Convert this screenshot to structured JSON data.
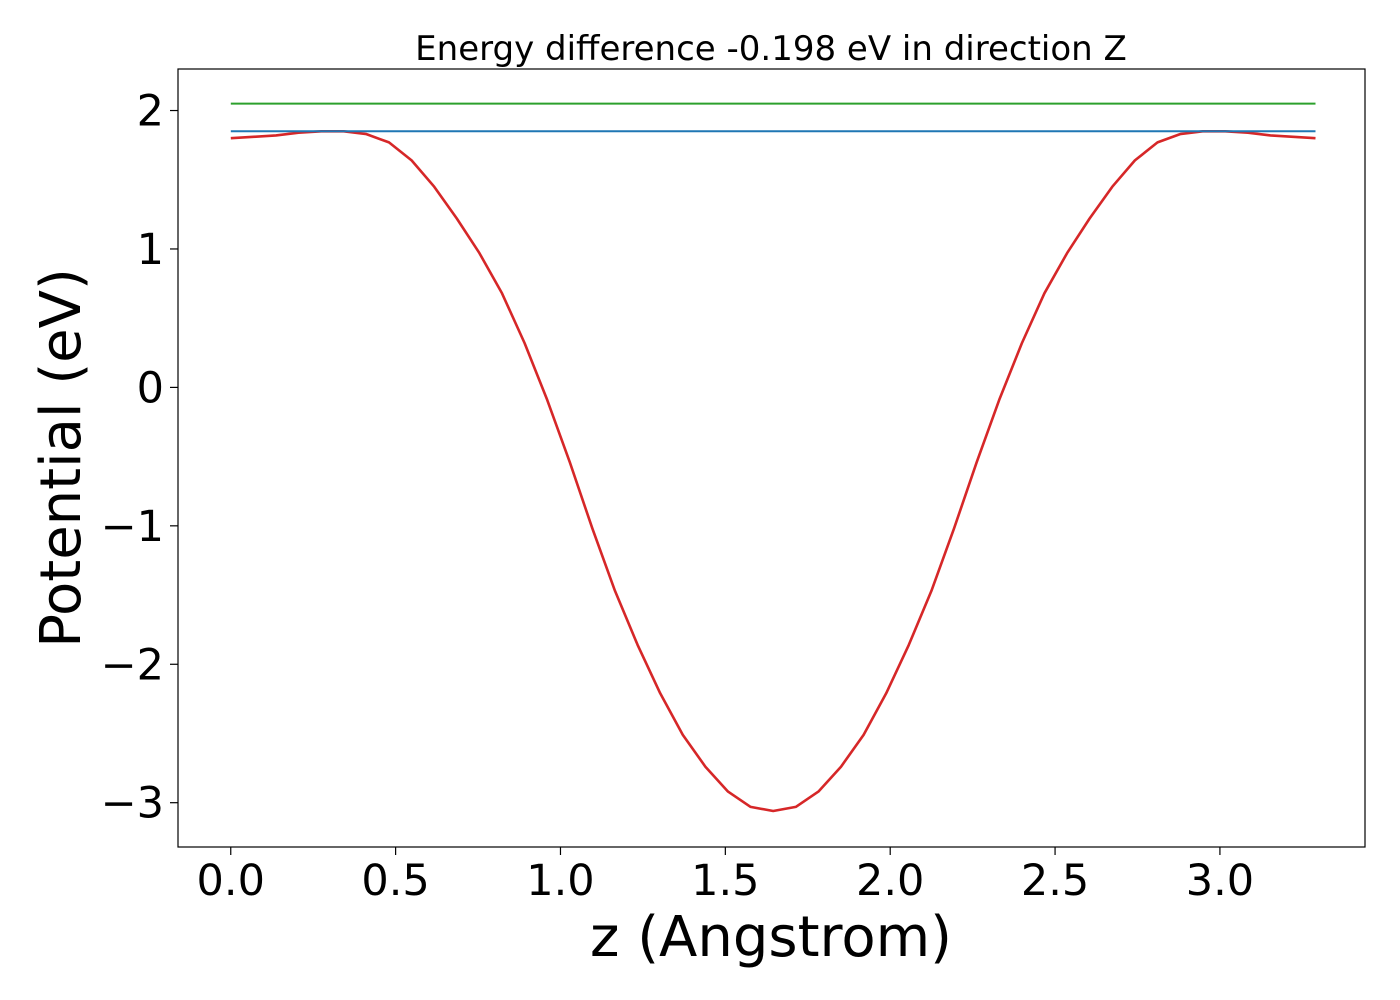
{
  "chart_data": {
    "type": "line",
    "title": "Energy difference -0.198 eV in direction Z",
    "xlabel": "z (Angstrom)",
    "ylabel": "Potential (eV)",
    "xlim": [
      -0.16,
      3.44
    ],
    "ylim": [
      -3.32,
      2.3
    ],
    "x_ticks": [
      0.0,
      0.5,
      1.0,
      1.5,
      2.0,
      2.5,
      3.0
    ],
    "x_tick_labels": [
      "0.0",
      "0.5",
      "1.0",
      "1.5",
      "2.0",
      "2.5",
      "3.0"
    ],
    "y_ticks": [
      -3,
      -2,
      -1,
      0,
      1,
      2
    ],
    "y_tick_labels": [
      "−3",
      "−2",
      "−1",
      "0",
      "1",
      "2"
    ],
    "grid": false,
    "series": [
      {
        "color": "#d62728",
        "x": [
          0.0,
          0.0686,
          0.1371,
          0.2057,
          0.2742,
          0.3428,
          0.4113,
          0.4799,
          0.5484,
          0.617,
          0.6855,
          0.7541,
          0.8226,
          0.8912,
          0.9597,
          1.0283,
          1.0968,
          1.1654,
          1.2339,
          1.3025,
          1.371,
          1.4396,
          1.5081,
          1.5767,
          1.6452,
          1.7138,
          1.7823,
          1.8509,
          1.9194,
          1.988,
          2.0565,
          2.1251,
          2.1936,
          2.2622,
          2.3307,
          2.3993,
          2.4678,
          2.5364,
          2.6049,
          2.6735,
          2.742,
          2.8106,
          2.8791,
          2.9477,
          3.0162,
          3.0848,
          3.1533,
          3.2219,
          3.29
        ],
        "y": [
          1.8,
          1.81,
          1.82,
          1.84,
          1.85,
          1.85,
          1.83,
          1.77,
          1.64,
          1.45,
          1.22,
          0.97,
          0.68,
          0.32,
          -0.09,
          -0.54,
          -1.02,
          -1.47,
          -1.86,
          -2.21,
          -2.51,
          -2.74,
          -2.92,
          -3.03,
          -3.06,
          -3.03,
          -2.92,
          -2.74,
          -2.51,
          -2.21,
          -1.86,
          -1.47,
          -1.02,
          -0.54,
          -0.09,
          0.32,
          0.68,
          0.97,
          1.22,
          1.45,
          1.64,
          1.77,
          1.83,
          1.85,
          1.85,
          1.84,
          1.82,
          1.81,
          1.8
        ]
      },
      {
        "color": "#1f77b4",
        "x": [
          0.0,
          3.29
        ],
        "y": [
          1.85,
          1.85
        ]
      },
      {
        "color": "#2ca02c",
        "x": [
          0.0,
          3.29
        ],
        "y": [
          2.05,
          2.05
        ]
      }
    ]
  }
}
